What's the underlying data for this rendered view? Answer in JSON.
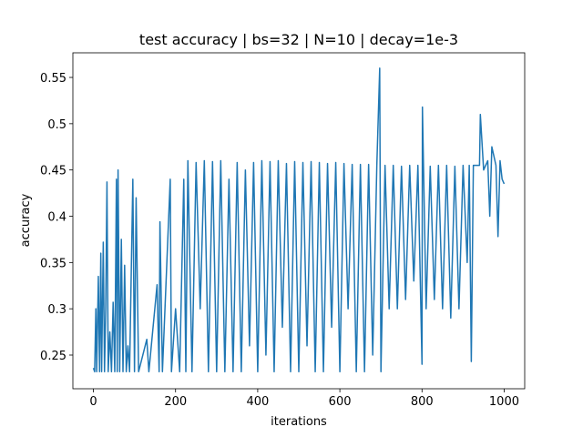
{
  "chart_data": {
    "type": "line",
    "title": "test accuracy | bs=32 | N=10 | decay=1e-3",
    "x_label": "iterations",
    "y_label": "accuracy",
    "color": "#1f77b4",
    "x": [
      0,
      3,
      6,
      8,
      12,
      15,
      18,
      20,
      24,
      27,
      30,
      33,
      36,
      40,
      44,
      48,
      52,
      56,
      58,
      60,
      64,
      68,
      72,
      76,
      80,
      84,
      88,
      96,
      100,
      104,
      110,
      130,
      135,
      155,
      160,
      162,
      168,
      187,
      190,
      200,
      210,
      220,
      225,
      230,
      240,
      250,
      260,
      270,
      280,
      290,
      300,
      310,
      320,
      330,
      340,
      350,
      360,
      370,
      380,
      390,
      400,
      410,
      420,
      430,
      440,
      450,
      460,
      470,
      480,
      490,
      500,
      510,
      520,
      530,
      540,
      550,
      560,
      570,
      580,
      590,
      600,
      610,
      620,
      630,
      640,
      650,
      660,
      670,
      680,
      690,
      697,
      700,
      710,
      720,
      730,
      740,
      750,
      760,
      770,
      780,
      790,
      800,
      801,
      810,
      820,
      830,
      840,
      850,
      860,
      870,
      880,
      890,
      900,
      910,
      915,
      920,
      925,
      940,
      942,
      950,
      960,
      965,
      970,
      980,
      985,
      990,
      995,
      1000
    ],
    "values": [
      0.236,
      0.232,
      0.3,
      0.232,
      0.335,
      0.232,
      0.36,
      0.232,
      0.372,
      0.232,
      0.3,
      0.437,
      0.232,
      0.275,
      0.232,
      0.307,
      0.232,
      0.44,
      0.232,
      0.45,
      0.232,
      0.375,
      0.232,
      0.347,
      0.232,
      0.26,
      0.232,
      0.44,
      0.232,
      0.42,
      0.232,
      0.267,
      0.232,
      0.326,
      0.232,
      0.394,
      0.232,
      0.44,
      0.232,
      0.3,
      0.232,
      0.44,
      0.232,
      0.46,
      0.232,
      0.458,
      0.3,
      0.46,
      0.232,
      0.459,
      0.232,
      0.46,
      0.232,
      0.44,
      0.232,
      0.458,
      0.232,
      0.45,
      0.26,
      0.458,
      0.232,
      0.46,
      0.25,
      0.459,
      0.232,
      0.46,
      0.28,
      0.457,
      0.232,
      0.459,
      0.232,
      0.458,
      0.26,
      0.459,
      0.232,
      0.458,
      0.232,
      0.457,
      0.28,
      0.458,
      0.232,
      0.457,
      0.3,
      0.456,
      0.232,
      0.456,
      0.232,
      0.456,
      0.25,
      0.455,
      0.56,
      0.232,
      0.455,
      0.3,
      0.455,
      0.3,
      0.454,
      0.31,
      0.455,
      0.33,
      0.455,
      0.24,
      0.518,
      0.3,
      0.454,
      0.31,
      0.455,
      0.3,
      0.455,
      0.29,
      0.454,
      0.3,
      0.455,
      0.35,
      0.455,
      0.243,
      0.455,
      0.455,
      0.51,
      0.45,
      0.46,
      0.4,
      0.475,
      0.455,
      0.378,
      0.46,
      0.44,
      0.435
    ],
    "xlim": [
      -50,
      1050
    ],
    "xticks": [
      0,
      200,
      400,
      600,
      800,
      1000
    ],
    "ylim": [
      0.2136,
      0.5766
    ],
    "yticks": [
      0.25,
      0.3,
      0.35,
      0.4,
      0.45,
      0.5,
      0.55
    ]
  }
}
